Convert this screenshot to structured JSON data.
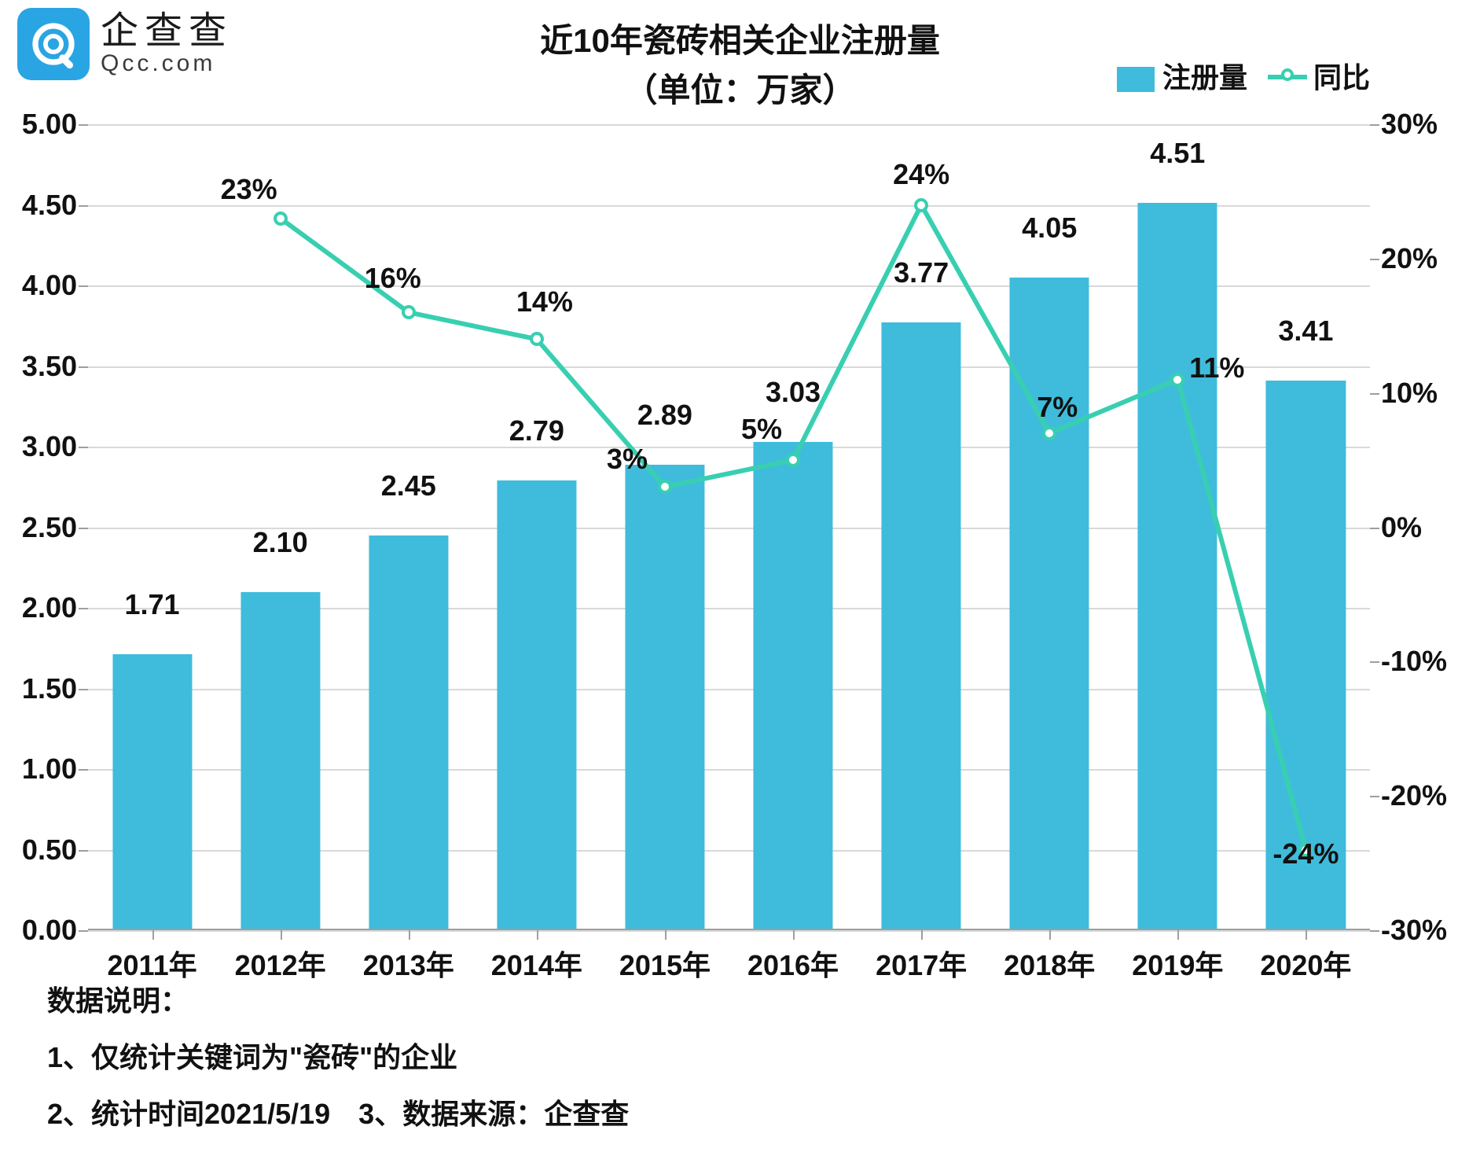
{
  "logo": {
    "cn": "企查查",
    "en": "Qcc.com",
    "mark_bg": "#2aa5e3",
    "mark_fg": "#ffffff"
  },
  "title": {
    "line1": "近10年瓷砖相关企业注册量",
    "line2": "（单位：万家）",
    "fontsize": 42,
    "color": "#111111"
  },
  "legend": {
    "bar_label": "注册量",
    "line_label": "同比",
    "fontsize": 36
  },
  "chart": {
    "type": "bar+line",
    "background_color": "#ffffff",
    "grid_color": "#d9d9d9",
    "axis_color": "#9e9e9e",
    "bar_color": "#3fbcdc",
    "line_color": "#38cfb1",
    "marker_border": "#38cfb1",
    "marker_fill": "#ffffff",
    "marker_size": 18,
    "line_width": 6,
    "bar_width_ratio": 0.62,
    "label_fontsize": 36,
    "tick_fontsize": 36,
    "categories": [
      "2011年",
      "2012年",
      "2013年",
      "2014年",
      "2015年",
      "2016年",
      "2017年",
      "2018年",
      "2019年",
      "2020年"
    ],
    "y_left": {
      "min": 0.0,
      "max": 5.0,
      "step": 0.5,
      "format": "fixed2"
    },
    "y_right": {
      "min": -30,
      "max": 30,
      "step": 10,
      "suffix": "%"
    },
    "bars": {
      "values": [
        1.71,
        2.1,
        2.45,
        2.79,
        2.89,
        3.03,
        3.77,
        4.05,
        4.51,
        3.41
      ],
      "labels": [
        "1.71",
        "2.10",
        "2.45",
        "2.79",
        "2.89",
        "3.03",
        "3.77",
        "4.05",
        "4.51",
        "3.41"
      ]
    },
    "line": {
      "values": [
        null,
        23,
        16,
        14,
        3,
        5,
        24,
        7,
        11,
        -24
      ],
      "labels": [
        null,
        "23%",
        "16%",
        "14%",
        "3%",
        "5%",
        "24%",
        "7%",
        "11%",
        "-24%"
      ],
      "label_offsets": [
        null,
        [
          -40,
          -12
        ],
        [
          -20,
          -18
        ],
        [
          10,
          -22
        ],
        [
          -48,
          -10
        ],
        [
          -40,
          -14
        ],
        [
          0,
          -14
        ],
        [
          10,
          -8
        ],
        [
          50,
          10
        ],
        [
          0,
          30
        ]
      ]
    }
  },
  "notes": {
    "heading": "数据说明：",
    "line1": "1、仅统计关键词为\"瓷砖\"的企业",
    "line2": "2、统计时间2021/5/19　3、数据来源：企查查"
  }
}
